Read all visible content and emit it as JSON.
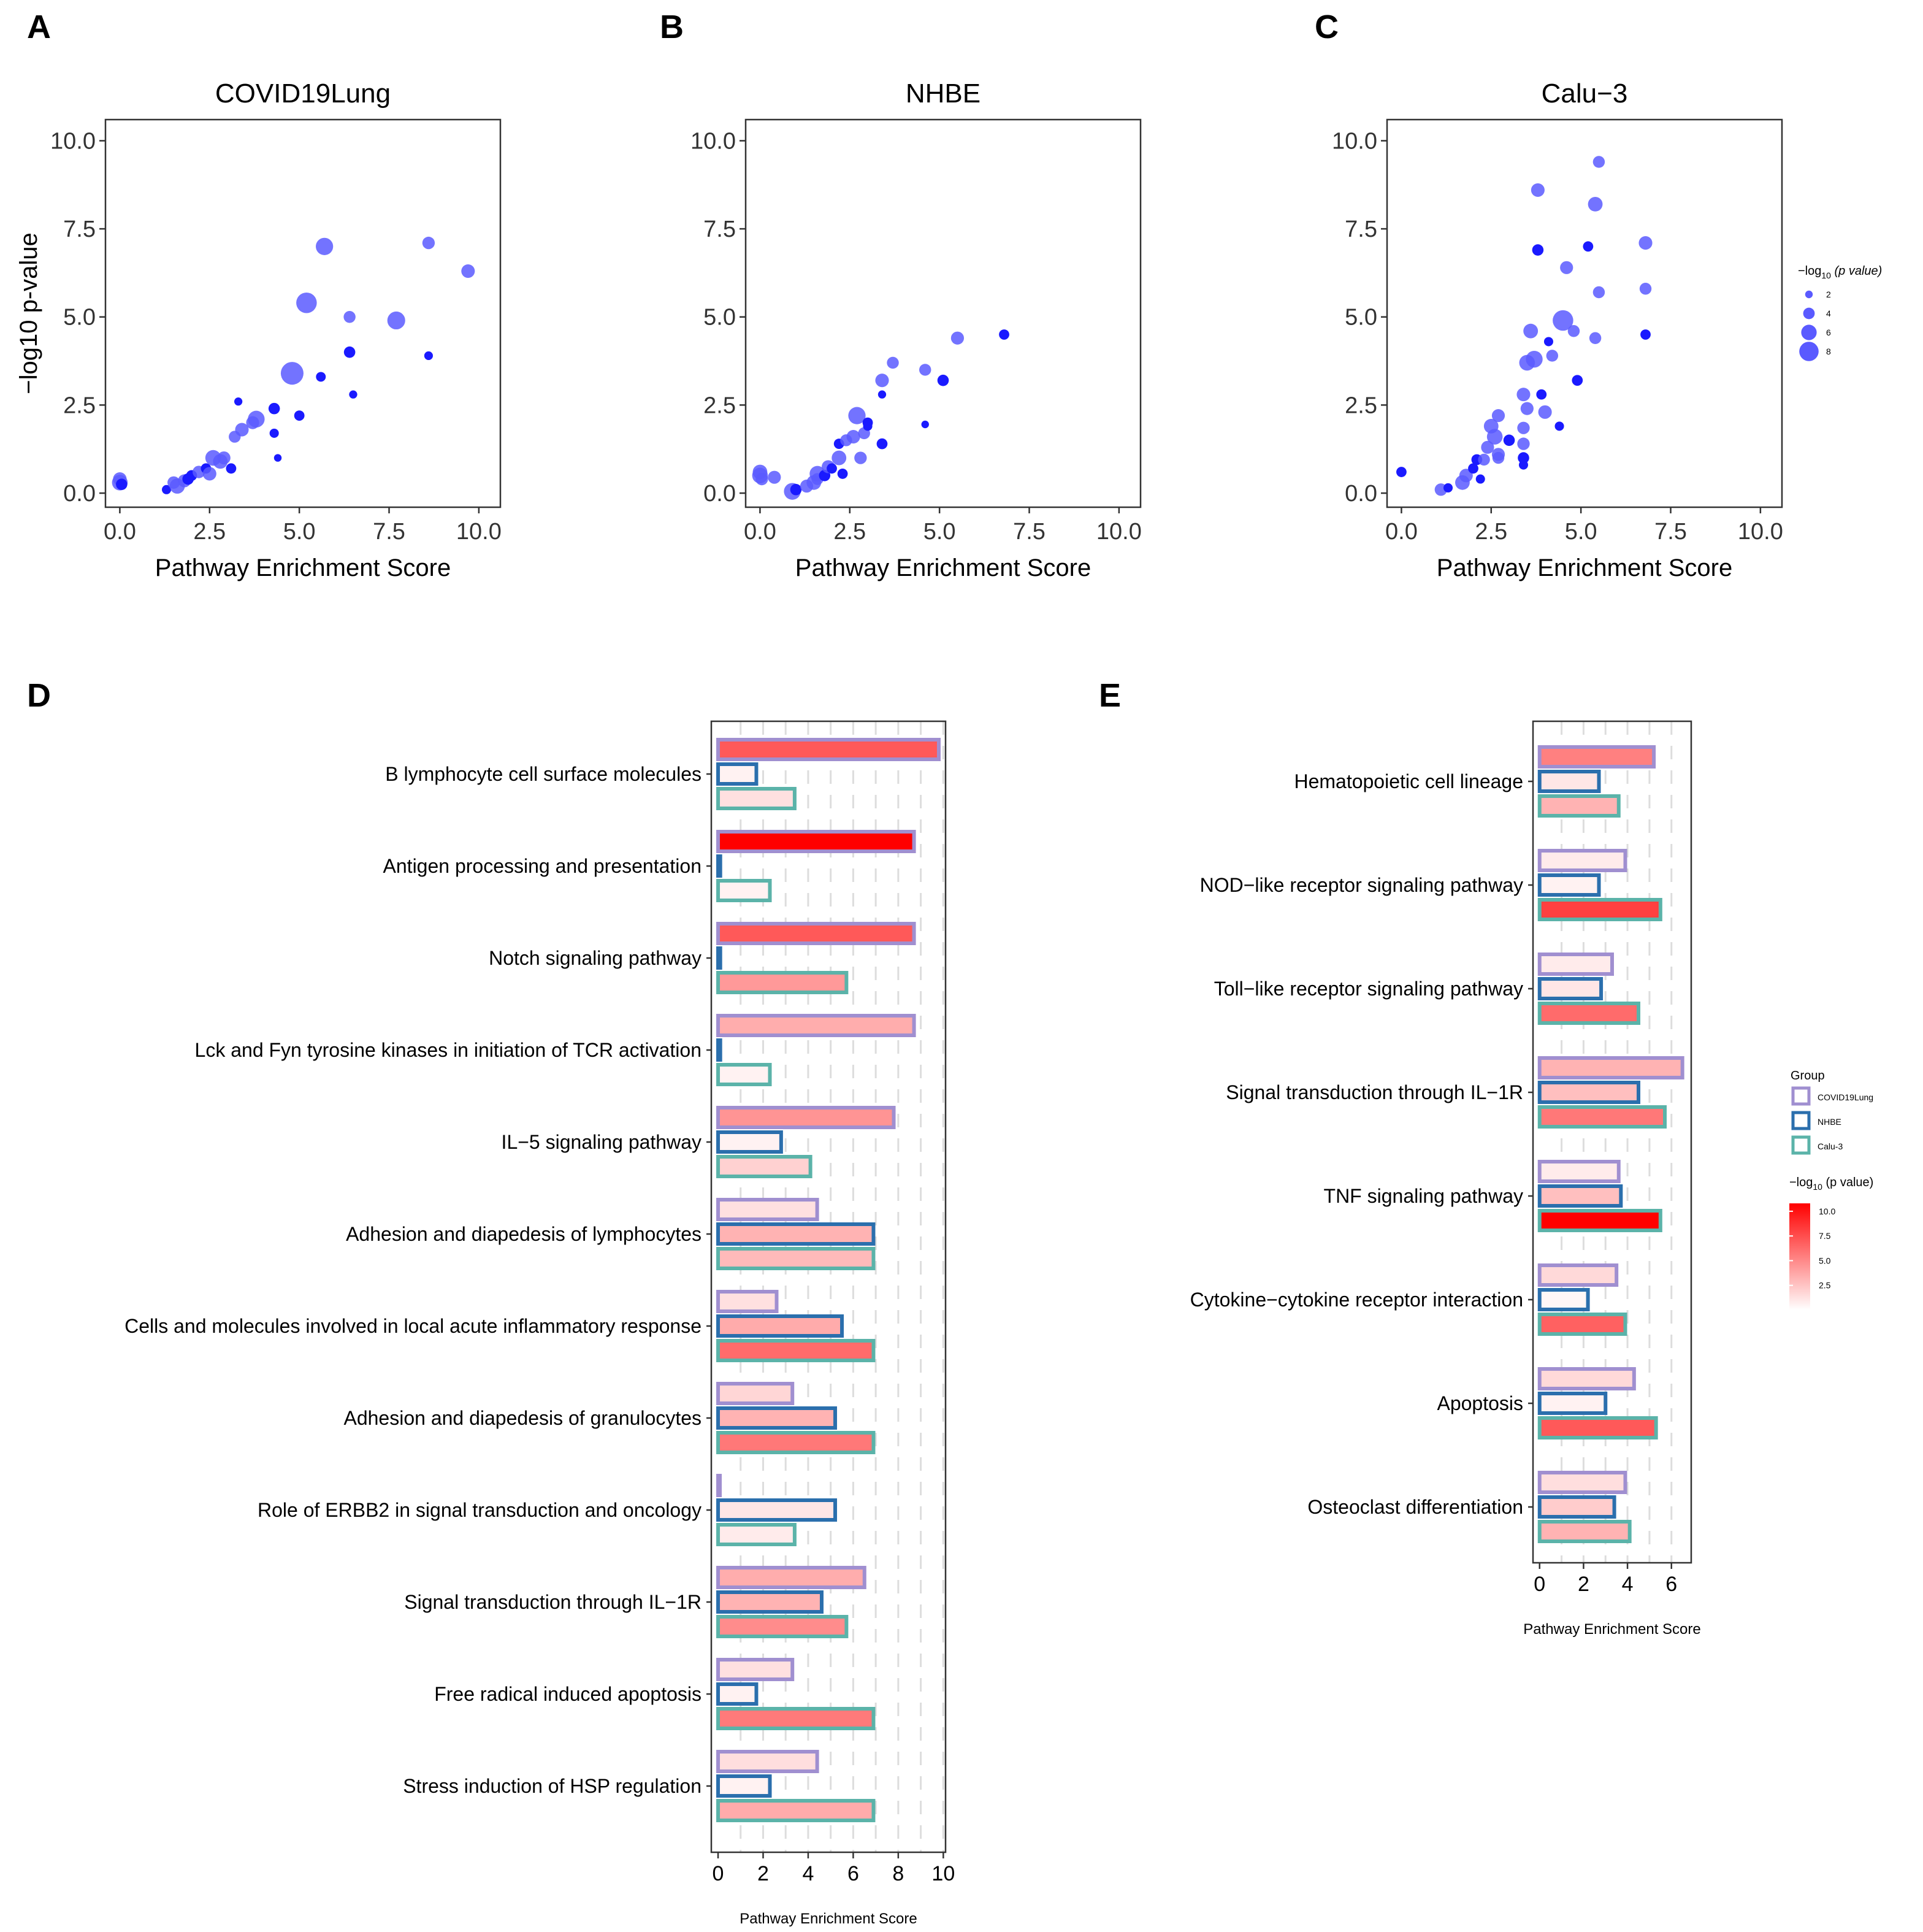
{
  "panel_labels": [
    "A",
    "B",
    "C",
    "D",
    "E"
  ],
  "colors": {
    "point": "#1a1aff",
    "point_light": "#5a5aff",
    "frame": "#333333",
    "grid": "#dddddd",
    "group_covid": "#a08fd0",
    "group_nhbe": "#2b6fad",
    "group_calu": "#5bb3a9",
    "gradient_high": "#ff0000",
    "gradient_low": "#ffffff"
  },
  "scatter_legend": {
    "title": "−log10 (p value)",
    "title_main": "−log",
    "title_sub": "10",
    "title_rest": " (p value)",
    "sizes": [
      2,
      4,
      6,
      8
    ],
    "size_labels": [
      "2",
      "4",
      "6",
      "8"
    ]
  },
  "bar_legend": {
    "group_title": "Group",
    "groups": [
      "COVID19Lung",
      "NHBE",
      "Calu-3"
    ],
    "color_title_main": "−log",
    "color_title_sub": "10",
    "color_title_rest": " (p value)",
    "color_ticks": [
      "10.0",
      "7.5",
      "5.0",
      "2.5"
    ],
    "color_tick_values": [
      10,
      7.5,
      5,
      2.5
    ]
  },
  "chart_data": [
    {
      "panel": "A",
      "type": "scatter",
      "title": "COVID19Lung",
      "xlabel": "Pathway Enrichment Score",
      "ylabel": "−log10 p-value",
      "xlim": [
        -0.4,
        10.6
      ],
      "ylim": [
        -0.4,
        10.6
      ],
      "xticks": [
        0,
        2.5,
        5,
        7.5,
        10
      ],
      "xtick_labels": [
        "0.0",
        "2.5",
        "5.0",
        "7.5",
        "10.0"
      ],
      "yticks": [
        0,
        2.5,
        5,
        7.5,
        10
      ],
      "ytick_labels": [
        "0.0",
        "2.5",
        "5.0",
        "7.5",
        "10.0"
      ],
      "points": [
        [
          0.0,
          0.3,
          2
        ],
        [
          0.0,
          0.4,
          1.6
        ],
        [
          0.05,
          0.25,
          1.2
        ],
        [
          1.3,
          0.1,
          0.8
        ],
        [
          1.5,
          0.3,
          1.4
        ],
        [
          1.6,
          0.2,
          1.9
        ],
        [
          1.8,
          0.35,
          1.5
        ],
        [
          1.9,
          0.4,
          1.2
        ],
        [
          2.0,
          0.5,
          1.1
        ],
        [
          2.2,
          0.6,
          1.4
        ],
        [
          2.4,
          0.7,
          1.0
        ],
        [
          2.5,
          0.55,
          1.6
        ],
        [
          2.6,
          1.0,
          2.0
        ],
        [
          2.8,
          0.9,
          1.8
        ],
        [
          2.9,
          1.0,
          1.5
        ],
        [
          3.1,
          0.7,
          1.0
        ],
        [
          3.2,
          1.6,
          1.3
        ],
        [
          3.4,
          1.8,
          1.6
        ],
        [
          3.3,
          2.6,
          0.6
        ],
        [
          3.8,
          2.1,
          2.2
        ],
        [
          3.7,
          2.0,
          1.5
        ],
        [
          4.3,
          2.4,
          1.2
        ],
        [
          4.3,
          1.7,
          0.8
        ],
        [
          4.4,
          1.0,
          0.5
        ],
        [
          5.0,
          2.2,
          1.0
        ],
        [
          4.8,
          3.4,
          3.3
        ],
        [
          5.2,
          5.4,
          2.9
        ],
        [
          5.6,
          3.3,
          0.9
        ],
        [
          5.7,
          7.0,
          2.3
        ],
        [
          6.4,
          4.0,
          1.2
        ],
        [
          6.4,
          5.0,
          1.3
        ],
        [
          6.5,
          2.8,
          0.6
        ],
        [
          7.7,
          4.9,
          2.4
        ],
        [
          8.6,
          7.1,
          1.4
        ],
        [
          8.6,
          3.9,
          0.7
        ],
        [
          9.7,
          6.3,
          1.6
        ]
      ]
    },
    {
      "panel": "B",
      "type": "scatter",
      "title": "NHBE",
      "xlabel": "Pathway Enrichment Score",
      "ylabel": "",
      "xlim": [
        -0.4,
        10.6
      ],
      "ylim": [
        -0.4,
        10.6
      ],
      "xticks": [
        0,
        2.5,
        5,
        7.5,
        10
      ],
      "xtick_labels": [
        "0.0",
        "2.5",
        "5.0",
        "7.5",
        "10.0"
      ],
      "yticks": [
        0,
        2.5,
        5,
        7.5,
        10
      ],
      "ytick_labels": [
        "0.0",
        "2.5",
        "5.0",
        "7.5",
        "10.0"
      ],
      "points": [
        [
          0.0,
          0.5,
          2
        ],
        [
          0.0,
          0.6,
          1.8
        ],
        [
          0.05,
          0.4,
          1.4
        ],
        [
          0.4,
          0.45,
          1.5
        ],
        [
          0.9,
          0.05,
          2.2
        ],
        [
          1.0,
          0.1,
          1.2
        ],
        [
          1.3,
          0.2,
          1.5
        ],
        [
          1.5,
          0.3,
          1.8
        ],
        [
          1.6,
          0.4,
          1.3
        ],
        [
          1.6,
          0.55,
          2.0
        ],
        [
          1.8,
          0.5,
          1.2
        ],
        [
          1.9,
          0.75,
          1.5
        ],
        [
          2.0,
          0.7,
          1.0
        ],
        [
          2.2,
          1.0,
          1.8
        ],
        [
          2.3,
          0.55,
          1.0
        ],
        [
          2.2,
          1.4,
          1.0
        ],
        [
          2.4,
          1.5,
          1.3
        ],
        [
          2.6,
          1.6,
          1.6
        ],
        [
          2.7,
          2.2,
          2.3
        ],
        [
          2.8,
          1.0,
          1.4
        ],
        [
          2.9,
          1.7,
          1.3
        ],
        [
          3.0,
          2.0,
          1.0
        ],
        [
          3.0,
          1.9,
          0.8
        ],
        [
          3.4,
          1.4,
          1.1
        ],
        [
          3.4,
          3.2,
          1.6
        ],
        [
          3.7,
          3.7,
          1.3
        ],
        [
          3.4,
          2.8,
          0.6
        ],
        [
          4.6,
          3.5,
          1.3
        ],
        [
          4.6,
          1.95,
          0.5
        ],
        [
          5.1,
          3.2,
          1.2
        ],
        [
          5.5,
          4.4,
          1.5
        ],
        [
          6.8,
          4.5,
          1.0
        ]
      ]
    },
    {
      "panel": "C",
      "type": "scatter",
      "title": "Calu−3",
      "xlabel": "Pathway Enrichment Score",
      "ylabel": "",
      "xlim": [
        -0.4,
        10.6
      ],
      "ylim": [
        -0.4,
        10.6
      ],
      "xticks": [
        0,
        2.5,
        5,
        7.5,
        10
      ],
      "xtick_labels": [
        "0.0",
        "2.5",
        "5.0",
        "7.5",
        "10.0"
      ],
      "yticks": [
        0,
        2.5,
        5,
        7.5,
        10
      ],
      "ytick_labels": [
        "0.0",
        "2.5",
        "5.0",
        "7.5",
        "10.0"
      ],
      "points": [
        [
          0.0,
          0.6,
          1.0
        ],
        [
          1.1,
          0.1,
          1.4
        ],
        [
          1.3,
          0.15,
          0.8
        ],
        [
          1.7,
          0.3,
          1.8
        ],
        [
          1.8,
          0.5,
          1.6
        ],
        [
          2.0,
          0.7,
          1.0
        ],
        [
          2.1,
          0.95,
          1.1
        ],
        [
          2.3,
          0.95,
          1.3
        ],
        [
          2.2,
          0.4,
          0.8
        ],
        [
          2.4,
          1.3,
          1.5
        ],
        [
          2.5,
          1.9,
          1.8
        ],
        [
          2.6,
          1.6,
          2.0
        ],
        [
          2.7,
          1.1,
          1.5
        ],
        [
          2.7,
          2.2,
          1.5
        ],
        [
          2.7,
          1.0,
          1.3
        ],
        [
          3.0,
          1.5,
          1.2
        ],
        [
          3.4,
          2.8,
          1.6
        ],
        [
          3.4,
          1.4,
          1.4
        ],
        [
          3.4,
          1.85,
          1.4
        ],
        [
          3.4,
          1.0,
          1.2
        ],
        [
          3.4,
          0.8,
          0.8
        ],
        [
          3.5,
          2.4,
          1.5
        ],
        [
          3.5,
          3.7,
          2.0
        ],
        [
          3.7,
          3.8,
          2.2
        ],
        [
          3.6,
          4.6,
          1.8
        ],
        [
          3.9,
          2.8,
          1.0
        ],
        [
          4.0,
          2.3,
          1.6
        ],
        [
          4.2,
          3.9,
          1.3
        ],
        [
          4.1,
          4.3,
          0.8
        ],
        [
          4.5,
          4.9,
          2.9
        ],
        [
          4.4,
          1.9,
          0.8
        ],
        [
          4.8,
          4.6,
          1.3
        ],
        [
          4.9,
          3.2,
          1.1
        ],
        [
          5.4,
          4.4,
          1.3
        ],
        [
          5.5,
          5.7,
          1.3
        ],
        [
          3.8,
          8.6,
          1.6
        ],
        [
          3.8,
          6.9,
          1.2
        ],
        [
          4.6,
          6.4,
          1.5
        ],
        [
          5.2,
          7.0,
          1.0
        ],
        [
          5.4,
          8.2,
          1.8
        ],
        [
          5.5,
          9.4,
          1.3
        ],
        [
          6.8,
          7.1,
          1.6
        ],
        [
          6.8,
          5.8,
          1.3
        ],
        [
          6.8,
          4.5,
          1.0
        ]
      ]
    },
    {
      "panel": "D",
      "type": "bar",
      "orientation": "horizontal",
      "xlabel": "Pathway Enrichment Score",
      "xlim": [
        -0.3,
        10.1
      ],
      "xticks": [
        0,
        2,
        4,
        6,
        8,
        10
      ],
      "xtick_labels": [
        "0",
        "2",
        "4",
        "6",
        "8",
        "10"
      ],
      "groups": [
        "COVID19Lung",
        "NHBE",
        "Calu-3"
      ],
      "categories": [
        "B lymphocyte cell surface molecules",
        "Antigen processing and presentation",
        "Notch signaling pathway",
        "Lck and Fyn tyrosine kinases in initiation of TCR activation",
        "IL−5 signaling pathway",
        "Adhesion and diapedesis of lymphocytes",
        "Cells and molecules involved in local acute inflammatory response",
        "Adhesion and diapedesis of granulocytes",
        "Role of ERBB2 in signal transduction and oncology",
        "Signal transduction through IL−1R",
        "Free radical induced apoptosis",
        "Stress induction of HSP regulation"
      ],
      "series": [
        {
          "name": "COVID19Lung",
          "values": [
            9.8,
            8.7,
            8.7,
            8.7,
            7.8,
            4.4,
            2.6,
            3.3,
            0.0,
            6.5,
            3.3,
            4.4
          ],
          "color_values": [
            6.5,
            10.0,
            6.5,
            3.2,
            4.2,
            1.2,
            1.2,
            1.6,
            0.5,
            3.2,
            1.2,
            1.3
          ]
        },
        {
          "name": "NHBE",
          "values": [
            1.7,
            0.1,
            0.1,
            0.1,
            2.8,
            6.9,
            5.5,
            5.2,
            5.2,
            4.6,
            1.7,
            2.3
          ],
          "color_values": [
            0.5,
            1.0,
            1.0,
            1.0,
            0.5,
            3.0,
            3.3,
            3.0,
            1.0,
            3.0,
            0.5,
            0.5
          ]
        },
        {
          "name": "Calu-3",
          "values": [
            3.4,
            2.3,
            5.7,
            2.3,
            4.1,
            6.9,
            6.9,
            6.9,
            3.4,
            5.7,
            6.9,
            6.9
          ],
          "color_values": [
            1.2,
            0.5,
            4.0,
            0.5,
            1.8,
            2.7,
            5.8,
            5.3,
            0.8,
            4.5,
            5.2,
            3.3
          ]
        }
      ]
    },
    {
      "panel": "E",
      "type": "bar",
      "orientation": "horizontal",
      "xlabel": "Pathway Enrichment Score",
      "xlim": [
        -0.3,
        6.9
      ],
      "xticks": [
        0,
        2,
        4,
        6
      ],
      "xtick_labels": [
        "0",
        "2",
        "4",
        "6"
      ],
      "groups": [
        "COVID19Lung",
        "NHBE",
        "Calu-3"
      ],
      "categories": [
        "Hematopoietic cell lineage",
        "NOD−like receptor signaling pathway",
        "Toll−like receptor signaling pathway",
        "Signal transduction through IL−1R",
        "TNF signaling pathway",
        "Cytokine−cytokine receptor interaction",
        "Apoptosis",
        "Osteoclast differentiation"
      ],
      "series": [
        {
          "name": "COVID19Lung",
          "values": [
            5.2,
            3.9,
            3.3,
            6.5,
            3.6,
            3.5,
            4.3,
            3.9
          ],
          "color_values": [
            5.0,
            0.8,
            0.8,
            3.0,
            0.8,
            1.5,
            1.5,
            1.3
          ]
        },
        {
          "name": "NHBE",
          "values": [
            2.7,
            2.7,
            2.8,
            4.5,
            3.7,
            2.2,
            3.0,
            3.4
          ],
          "color_values": [
            1.0,
            0.5,
            1.0,
            2.5,
            2.5,
            0.3,
            0.5,
            2.0
          ]
        },
        {
          "name": "Calu-3",
          "values": [
            3.6,
            5.5,
            4.5,
            5.7,
            5.5,
            3.9,
            5.3,
            4.1
          ],
          "color_values": [
            3.0,
            7.5,
            5.8,
            5.3,
            10.0,
            6.2,
            6.5,
            3.0
          ]
        }
      ]
    }
  ]
}
